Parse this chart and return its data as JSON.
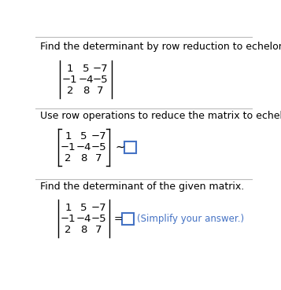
{
  "title1": "Find the determinant by row reduction to echelon form.",
  "title2": "Use row operations to reduce the matrix to echelon form.",
  "title3": "Find the determinant of the given matrix.",
  "matrix_rows": [
    [
      "1",
      "5",
      "−7"
    ],
    [
      "−1",
      "−4",
      "−5"
    ],
    [
      "2",
      "8",
      "7"
    ]
  ],
  "simplify_text": "(Simplify your answer.)",
  "bg_color": "#ffffff",
  "text_color": "#000000",
  "blue_color": "#4472c4",
  "font_size_title": 9.0,
  "font_size_matrix": 9.5,
  "divider_color": "#bbbbbb",
  "top_border_color": "#bbbbbb"
}
